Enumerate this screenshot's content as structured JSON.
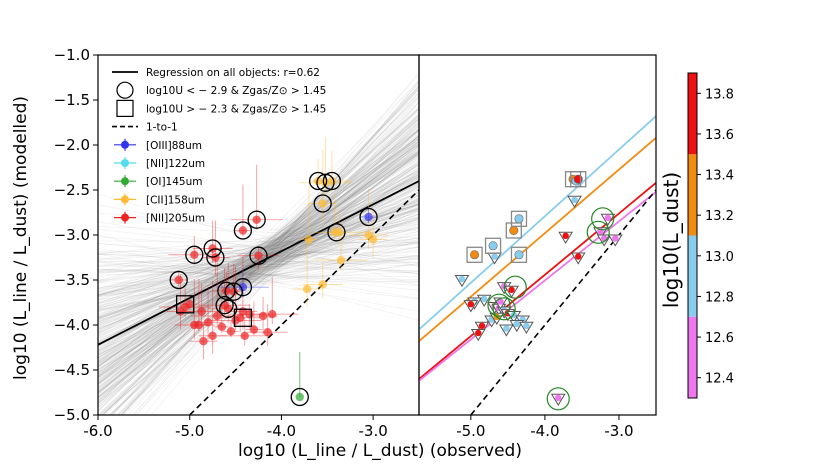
{
  "chart_data": [
    {
      "type": "scatter",
      "panel": "left",
      "xlabel": "log10 (L_line / L_dust) (observed)",
      "ylabel": "log10 (L_line / L_dust) (modelled)",
      "xlim": [
        -6.0,
        -2.5
      ],
      "ylim": [
        -5.0,
        -1.0
      ],
      "x_ticks": [
        "-6.0",
        "-5.0",
        "-4.0",
        "-3.0"
      ],
      "x_tick_values": [
        -6.0,
        -5.0,
        -4.0,
        -3.0
      ],
      "y_ticks": [
        "−1.0",
        "−1.5",
        "−2.0",
        "−2.5",
        "−3.0",
        "−3.5",
        "−4.0",
        "−4.5",
        "−5.0"
      ],
      "y_tick_values": [
        -1.0,
        -1.5,
        -2.0,
        -2.5,
        -3.0,
        -3.5,
        -4.0,
        -4.5,
        -5.0
      ],
      "legend": {
        "position": "top-left",
        "entries": [
          {
            "label": "Regression on all objects:  r=0.62",
            "style": "solid-line"
          },
          {
            "label": "log10U  <  − 2.9 & Zgas/Z⊙ > 1.45",
            "style": "circle"
          },
          {
            "label": "log10U  >  − 2.3 & Zgas/Z⊙ > 1.45",
            "style": "square"
          },
          {
            "label": "1-to-1",
            "style": "dashed-line"
          },
          {
            "label": "[OIII]88um",
            "color": "#3333ee"
          },
          {
            "label": "[NII]122um",
            "color": "#55ddee"
          },
          {
            "label": "[OI]145um",
            "color": "#33aa33"
          },
          {
            "label": "[CII]158um",
            "color": "#ffbb33"
          },
          {
            "label": "[NII]205um",
            "color": "#ee2222"
          }
        ]
      },
      "regression": {
        "slope": 0.52,
        "intercept": -1.1
      },
      "one_to_one": true,
      "series": [
        {
          "name": "[NII]205um",
          "color": "#ee2222",
          "points": [
            [
              -5.12,
              -3.5
            ],
            [
              -4.95,
              -3.22
            ],
            [
              -4.75,
              -3.15
            ],
            [
              -4.72,
              -3.25
            ],
            [
              -4.42,
              -2.95
            ],
            [
              -4.27,
              -2.83
            ],
            [
              -4.25,
              -3.23
            ],
            [
              -4.6,
              -3.62
            ],
            [
              -4.52,
              -3.63
            ],
            [
              -4.62,
              -3.78
            ],
            [
              -4.58,
              -3.82
            ],
            [
              -4.42,
              -3.85
            ],
            [
              -5.0,
              -3.77
            ],
            [
              -5.05,
              -3.8
            ],
            [
              -4.87,
              -3.85
            ],
            [
              -4.8,
              -3.97
            ],
            [
              -4.9,
              -4.0
            ],
            [
              -4.7,
              -3.9
            ],
            [
              -4.35,
              -3.88
            ],
            [
              -4.2,
              -3.9
            ],
            [
              -4.3,
              -4.05
            ],
            [
              -4.1,
              -3.88
            ],
            [
              -4.95,
              -4.0
            ],
            [
              -4.75,
              -4.12
            ],
            [
              -4.55,
              -4.07
            ],
            [
              -4.4,
              -4.12
            ],
            [
              -4.15,
              -4.08
            ],
            [
              -5.1,
              -3.85
            ],
            [
              -4.65,
              -4.02
            ],
            [
              -4.5,
              -3.95
            ],
            [
              -4.45,
              -3.92
            ],
            [
              -4.85,
              -4.18
            ]
          ]
        },
        {
          "name": "[CII]158um",
          "color": "#ffbb33",
          "points": [
            [
              -3.6,
              -2.4
            ],
            [
              -3.52,
              -2.42
            ],
            [
              -3.45,
              -2.4
            ],
            [
              -3.55,
              -2.65
            ],
            [
              -3.42,
              -2.97
            ],
            [
              -3.37,
              -2.97
            ],
            [
              -3.05,
              -3.0
            ],
            [
              -3.0,
              -3.05
            ],
            [
              -3.7,
              -3.05
            ],
            [
              -3.35,
              -3.28
            ],
            [
              -3.55,
              -3.55
            ],
            [
              -3.72,
              -3.6
            ]
          ]
        },
        {
          "name": "[OIII]88um",
          "color": "#3333ee",
          "points": [
            [
              -3.05,
              -2.8
            ],
            [
              -4.42,
              -3.58
            ]
          ]
        },
        {
          "name": "[OI]145um",
          "color": "#33aa33",
          "points": [
            [
              -3.8,
              -4.8
            ]
          ]
        }
      ],
      "circled_points": [
        [
          -3.6,
          -2.4
        ],
        [
          -3.52,
          -2.42
        ],
        [
          -3.45,
          -2.4
        ],
        [
          -3.55,
          -2.65
        ],
        [
          -3.4,
          -2.97
        ],
        [
          -3.05,
          -2.8
        ],
        [
          -4.95,
          -3.22
        ],
        [
          -4.75,
          -3.15
        ],
        [
          -4.72,
          -3.25
        ],
        [
          -4.42,
          -2.95
        ],
        [
          -4.27,
          -2.83
        ],
        [
          -4.25,
          -3.23
        ],
        [
          -5.12,
          -3.5
        ],
        [
          -4.6,
          -3.62
        ],
        [
          -4.52,
          -3.63
        ],
        [
          -4.42,
          -3.58
        ],
        [
          -4.62,
          -3.78
        ],
        [
          -4.58,
          -3.82
        ],
        [
          -3.8,
          -4.8
        ]
      ],
      "squared_points": [
        [
          -5.05,
          -3.77
        ],
        [
          -4.42,
          -3.92
        ]
      ]
    },
    {
      "type": "scatter",
      "panel": "right",
      "xlim": [
        -5.7,
        -2.5
      ],
      "ylim": [
        -5.0,
        -1.0
      ],
      "x_ticks": [
        "-5.0",
        "-4.0",
        "-3.0"
      ],
      "x_tick_values": [
        -5.0,
        -4.0,
        -3.0
      ],
      "colorbar": {
        "label": "log10(L_dust)",
        "range": [
          12.3,
          13.9
        ],
        "ticks": [
          "12.4",
          "12.6",
          "12.8",
          "13.0",
          "13.2",
          "13.4",
          "13.6",
          "13.8"
        ],
        "tick_values": [
          12.4,
          12.6,
          12.8,
          13.0,
          13.2,
          13.4,
          13.6,
          13.8
        ],
        "bins": [
          {
            "from": 12.3,
            "to": 12.7,
            "color": "#ee77ee"
          },
          {
            "from": 12.7,
            "to": 13.1,
            "color": "#88ccee"
          },
          {
            "from": 13.1,
            "to": 13.5,
            "color": "#f28c11"
          },
          {
            "from": 13.5,
            "to": 13.9,
            "color": "#ee1111"
          }
        ]
      },
      "bin_lines": [
        {
          "color": "#88ccee",
          "from": [
            -5.7,
            -4.05
          ],
          "to": [
            -2.5,
            -1.68
          ]
        },
        {
          "color": "#f28c11",
          "from": [
            -5.7,
            -4.18
          ],
          "to": [
            -2.5,
            -1.92
          ]
        },
        {
          "color": "#ee1111",
          "from": [
            -5.7,
            -4.6
          ],
          "to": [
            -2.5,
            -2.42
          ]
        },
        {
          "color": "#ee77ee",
          "from": [
            -5.7,
            -4.62
          ],
          "to": [
            -2.5,
            -2.52
          ]
        }
      ],
      "one_to_one": true,
      "points": [
        {
          "x": -3.62,
          "y": -2.38,
          "color": "#f28c11",
          "marker": "circle"
        },
        {
          "x": -3.58,
          "y": -2.4,
          "color": "#88ccee",
          "marker": "circle"
        },
        {
          "x": -3.55,
          "y": -2.38,
          "color": "#ee1111",
          "marker": "circle"
        },
        {
          "x": -3.6,
          "y": -2.62,
          "color": "#88ccee",
          "marker": "triangle"
        },
        {
          "x": -4.35,
          "y": -2.82,
          "color": "#88ccee",
          "marker": "circle"
        },
        {
          "x": -4.42,
          "y": -2.95,
          "color": "#f28c11",
          "marker": "circle"
        },
        {
          "x": -4.7,
          "y": -3.12,
          "color": "#88ccee",
          "marker": "circle"
        },
        {
          "x": -4.95,
          "y": -3.22,
          "color": "#f28c11",
          "marker": "circle"
        },
        {
          "x": -4.68,
          "y": -3.25,
          "color": "#88ccee",
          "marker": "triangle"
        },
        {
          "x": -4.35,
          "y": -3.22,
          "color": "#88ccee",
          "marker": "circle"
        },
        {
          "x": -3.72,
          "y": -3.02,
          "color": "#ee1111",
          "marker": "triangle"
        },
        {
          "x": -3.25,
          "y": -2.97,
          "color": "#ee77ee",
          "marker": "triangle"
        },
        {
          "x": -3.15,
          "y": -2.82,
          "color": "#ee77ee",
          "marker": "triangle"
        },
        {
          "x": -3.2,
          "y": -3.05,
          "color": "#ee77ee",
          "marker": "triangle"
        },
        {
          "x": -3.05,
          "y": -3.05,
          "color": "#ee77ee",
          "marker": "triangle"
        },
        {
          "x": -3.55,
          "y": -3.25,
          "color": "#ee1111",
          "marker": "triangle"
        },
        {
          "x": -5.12,
          "y": -3.5,
          "color": "#88ccee",
          "marker": "triangle"
        },
        {
          "x": -4.55,
          "y": -3.58,
          "color": "#ee77ee",
          "marker": "triangle"
        },
        {
          "x": -4.45,
          "y": -3.62,
          "color": "#ee1111",
          "marker": "triangle"
        },
        {
          "x": -4.82,
          "y": -3.72,
          "color": "#88ccee",
          "marker": "triangle"
        },
        {
          "x": -4.95,
          "y": -3.75,
          "color": "#88ccee",
          "marker": "triangle"
        },
        {
          "x": -5.0,
          "y": -3.78,
          "color": "#ee1111",
          "marker": "triangle"
        },
        {
          "x": -4.68,
          "y": -3.8,
          "color": "#ee77ee",
          "marker": "triangle"
        },
        {
          "x": -4.62,
          "y": -3.82,
          "color": "#ee77ee",
          "marker": "triangle"
        },
        {
          "x": -4.55,
          "y": -3.85,
          "color": "#88ccee",
          "marker": "triangle"
        },
        {
          "x": -4.5,
          "y": -3.88,
          "color": "#ee1111",
          "marker": "triangle"
        },
        {
          "x": -4.42,
          "y": -3.9,
          "color": "#88ccee",
          "marker": "triangle"
        },
        {
          "x": -4.3,
          "y": -3.95,
          "color": "#88ccee",
          "marker": "triangle"
        },
        {
          "x": -4.72,
          "y": -3.95,
          "color": "#88ccee",
          "marker": "triangle"
        },
        {
          "x": -4.85,
          "y": -4.02,
          "color": "#ee1111",
          "marker": "triangle"
        },
        {
          "x": -4.65,
          "y": -3.92,
          "color": "#f28c11",
          "marker": "triangle"
        },
        {
          "x": -4.38,
          "y": -4.0,
          "color": "#88ccee",
          "marker": "triangle"
        },
        {
          "x": -4.25,
          "y": -4.02,
          "color": "#88ccee",
          "marker": "triangle"
        },
        {
          "x": -4.52,
          "y": -4.05,
          "color": "#88ccee",
          "marker": "triangle"
        },
        {
          "x": -4.9,
          "y": -4.1,
          "color": "#ee1111",
          "marker": "triangle"
        },
        {
          "x": -4.6,
          "y": -3.75,
          "color": "#ee77ee",
          "marker": "triangle"
        },
        {
          "x": -3.82,
          "y": -4.82,
          "color": "#ee77ee",
          "marker": "triangle"
        }
      ],
      "circled_points": [
        [
          -3.22,
          -2.82
        ],
        [
          -3.28,
          -2.97
        ],
        [
          -4.4,
          -3.58
        ],
        [
          -4.62,
          -3.78
        ],
        [
          -4.55,
          -3.82
        ],
        [
          -3.82,
          -4.82
        ]
      ],
      "squared_points": [
        [
          -3.62,
          -2.38
        ],
        [
          -3.55,
          -2.38
        ],
        [
          -4.35,
          -2.82
        ],
        [
          -4.42,
          -2.95
        ],
        [
          -4.7,
          -3.12
        ],
        [
          -4.95,
          -3.22
        ],
        [
          -4.35,
          -3.22
        ]
      ]
    }
  ]
}
